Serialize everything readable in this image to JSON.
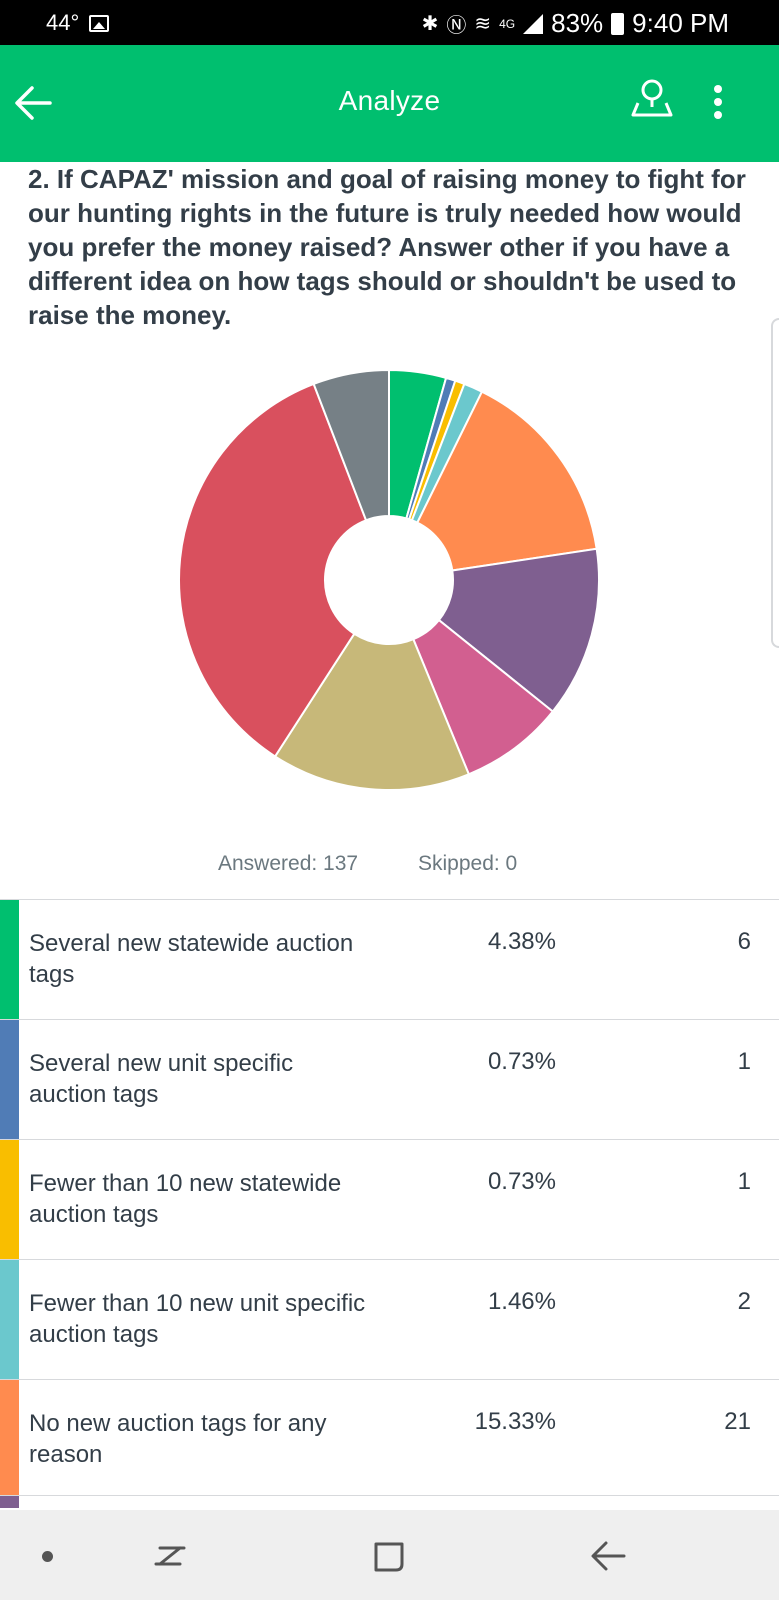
{
  "status_bar": {
    "temperature": "44°",
    "network": "4G",
    "battery": "83%",
    "time": "9:40 PM"
  },
  "app_bar": {
    "title": "Analyze"
  },
  "question": {
    "text": "2. If CAPAZ' mission and goal of raising money to fight for our hunting rights in the future is truly needed how would you prefer the money raised? Answer other if you have a different idea on how tags should or shouldn't be used to raise the money."
  },
  "stats": {
    "answered": "Answered: 137",
    "skipped": "Skipped: 0"
  },
  "chart_data": {
    "type": "pie",
    "values": [
      6,
      1,
      1,
      2,
      21,
      18,
      11,
      21,
      48,
      8
    ],
    "colors": [
      "#00bf6f",
      "#507cb6",
      "#f9be00",
      "#6bc8cd",
      "#ff8b4f",
      "#7f5f90",
      "#d25f90",
      "#c7b879",
      "#d9505e",
      "#768086"
    ]
  },
  "responses": [
    {
      "label": "Several new statewide auction tags",
      "percent": "4.38%",
      "count": "6",
      "color": "#00bf6f"
    },
    {
      "label": "Several new unit specific auction tags",
      "percent": "0.73%",
      "count": "1",
      "color": "#507cb6"
    },
    {
      "label": "Fewer than 10 new statewide auction tags",
      "percent": "0.73%",
      "count": "1",
      "color": "#f9be00"
    },
    {
      "label": "Fewer than 10 new unit specific auction tags",
      "percent": "1.46%",
      "count": "2",
      "color": "#6bc8cd"
    },
    {
      "label": "No new auction tags for any reason",
      "percent": "15.33%",
      "count": "21",
      "color": "#ff8b4f"
    }
  ],
  "partial_row_color": "#7f5f90"
}
